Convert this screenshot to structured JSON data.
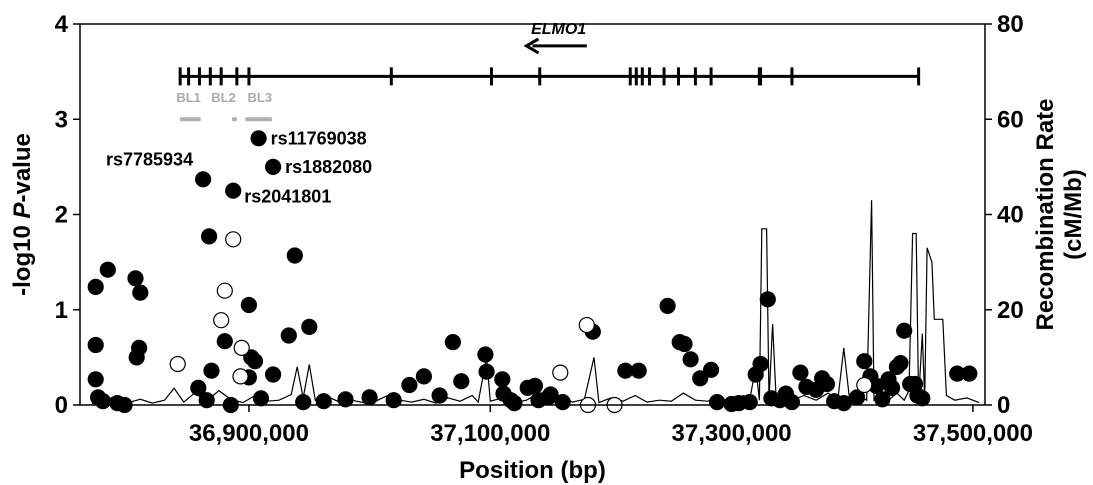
{
  "chart_data": {
    "type": "scatter",
    "xlabel": "Position (bp)",
    "ylabel_prefix": "-log10 ",
    "ylabel_italic": "P",
    "ylabel_suffix": "-value",
    "y2label_line1": "Recombination Rate",
    "y2label_line2": "(cM/Mb)",
    "xlim": [
      36760000,
      37510000
    ],
    "ylim": [
      0,
      4
    ],
    "y2lim": [
      0,
      80
    ],
    "x_ticks": [
      {
        "value": 36900000,
        "label": "36,900,000"
      },
      {
        "value": 37100000,
        "label": "37,100,000"
      },
      {
        "value": 37300000,
        "label": "37,300,000"
      },
      {
        "value": 37500000,
        "label": "37,500,000"
      }
    ],
    "y_ticks": [
      {
        "value": 0,
        "label": "0"
      },
      {
        "value": 1,
        "label": "1"
      },
      {
        "value": 2,
        "label": "2"
      },
      {
        "value": 3,
        "label": "3"
      },
      {
        "value": 4,
        "label": "4"
      }
    ],
    "y2_ticks": [
      {
        "value": 0,
        "label": "0"
      },
      {
        "value": 20,
        "label": "20"
      },
      {
        "value": 40,
        "label": "40"
      },
      {
        "value": 60,
        "label": "60"
      },
      {
        "value": 80,
        "label": "80"
      }
    ],
    "gene": {
      "name": "ELMO1",
      "start": 36843000,
      "end": 37455000,
      "track_y": 3.45,
      "direction": "left",
      "arrow_start": 37130000,
      "arrow_end": 37180000,
      "exons": [
        36843000,
        36850000,
        36859000,
        36868000,
        36877000,
        36890000,
        36900000,
        37018000,
        37101000,
        37141000,
        37216000,
        37221000,
        37226000,
        37232000,
        37244000,
        37256000,
        37270000,
        37283000,
        37323000,
        37324000,
        37350000,
        37455000
      ]
    },
    "ld_blocks": [
      {
        "name": "BL1",
        "start": 36843000,
        "end": 36860000
      },
      {
        "name": "BL2",
        "start": 36886000,
        "end": 36890000
      },
      {
        "name": "BL3",
        "start": 36897000,
        "end": 36919000
      }
    ],
    "labeled_snps": [
      {
        "name": "rs11769038",
        "x": 36908000,
        "y": 2.8
      },
      {
        "name": "rs7785934",
        "x": 36862000,
        "y": 2.37
      },
      {
        "name": "rs1882080",
        "x": 36920000,
        "y": 2.5
      },
      {
        "name": "rs2041801",
        "x": 36887000,
        "y": 2.25
      }
    ],
    "series": [
      {
        "filled": true,
        "points": [
          [
            36773000,
            1.24
          ],
          [
            36783000,
            1.42
          ],
          [
            36797000,
            0.0
          ],
          [
            36806000,
            1.33
          ],
          [
            36810000,
            1.18
          ],
          [
            36809000,
            0.6
          ],
          [
            36807000,
            0.5
          ],
          [
            36773000,
            0.63
          ],
          [
            36773000,
            0.27
          ],
          [
            36775000,
            0.08
          ],
          [
            36779000,
            0.04
          ],
          [
            36791000,
            0.02
          ],
          [
            36858000,
            0.18
          ],
          [
            36867000,
            1.77
          ],
          [
            36869000,
            0.36
          ],
          [
            36865000,
            0.05
          ],
          [
            36880000,
            0.67
          ],
          [
            36885000,
            0.0
          ],
          [
            36900000,
            1.05
          ],
          [
            36902000,
            0.5
          ],
          [
            36905000,
            0.46
          ],
          [
            36900000,
            0.29
          ],
          [
            36910000,
            0.07
          ],
          [
            36920000,
            0.32
          ],
          [
            36933000,
            0.73
          ],
          [
            36938000,
            1.57
          ],
          [
            36945000,
            0.03
          ],
          [
            36950000,
            0.82
          ],
          [
            36962000,
            0.04
          ],
          [
            36980000,
            0.06
          ],
          [
            37000000,
            0.08
          ],
          [
            37020000,
            0.05
          ],
          [
            37033000,
            0.21
          ],
          [
            37045000,
            0.3
          ],
          [
            37058000,
            0.1
          ],
          [
            37069000,
            0.66
          ],
          [
            37076000,
            0.25
          ],
          [
            37096000,
            0.53
          ],
          [
            37097000,
            0.35
          ],
          [
            37110000,
            0.27
          ],
          [
            37111000,
            0.12
          ],
          [
            37117000,
            0.05
          ],
          [
            37120000,
            0.02
          ],
          [
            37131000,
            0.18
          ],
          [
            37137000,
            0.2
          ],
          [
            37140000,
            0.05
          ],
          [
            37148000,
            0.08
          ],
          [
            37150000,
            0.11
          ],
          [
            37160000,
            0.03
          ],
          [
            37185000,
            0.77
          ],
          [
            37212000,
            0.36
          ],
          [
            37223000,
            0.36
          ],
          [
            37247000,
            1.04
          ],
          [
            37257000,
            0.66
          ],
          [
            37261000,
            0.64
          ],
          [
            37266000,
            0.48
          ],
          [
            37274000,
            0.28
          ],
          [
            37283000,
            0.37
          ],
          [
            37288000,
            0.03
          ],
          [
            37300000,
            0.01
          ],
          [
            37306000,
            0.02
          ],
          [
            37315000,
            0.03
          ],
          [
            37320000,
            0.32
          ],
          [
            37324000,
            0.43
          ],
          [
            37330000,
            1.11
          ],
          [
            37333000,
            0.07
          ],
          [
            37340000,
            0.05
          ],
          [
            37345000,
            0.12
          ],
          [
            37350000,
            0.03
          ],
          [
            37357000,
            0.34
          ],
          [
            37362000,
            0.19
          ],
          [
            37370000,
            0.16
          ],
          [
            37375000,
            0.28
          ],
          [
            37379000,
            0.22
          ],
          [
            37385000,
            0.04
          ],
          [
            37393000,
            0.02
          ],
          [
            37404000,
            0.08
          ],
          [
            37410000,
            0.46
          ],
          [
            37415000,
            0.3
          ],
          [
            37420000,
            0.2
          ],
          [
            37425000,
            0.06
          ],
          [
            37430000,
            0.27
          ],
          [
            37433000,
            0.18
          ],
          [
            37437000,
            0.4
          ],
          [
            37440000,
            0.44
          ],
          [
            37443000,
            0.78
          ],
          [
            37448000,
            0.22
          ],
          [
            37452000,
            0.22
          ],
          [
            37454000,
            0.1
          ],
          [
            37458000,
            0.07
          ],
          [
            37487000,
            0.33
          ],
          [
            37497000,
            0.33
          ]
        ]
      },
      {
        "filled": false,
        "points": [
          [
            36841000,
            0.43
          ],
          [
            36887000,
            1.74
          ],
          [
            36880000,
            1.2
          ],
          [
            36877000,
            0.89
          ],
          [
            36894000,
            0.6
          ],
          [
            36893000,
            0.3
          ],
          [
            37158000,
            0.34
          ],
          [
            37180000,
            0.84
          ],
          [
            37181000,
            0.0
          ],
          [
            37203000,
            0.0
          ],
          [
            37410000,
            0.21
          ]
        ]
      }
    ],
    "recombination": [
      [
        36770000,
        0.3
      ],
      [
        36780000,
        0.8
      ],
      [
        36790000,
        2.0
      ],
      [
        36800000,
        0.5
      ],
      [
        36810000,
        1.2
      ],
      [
        36820000,
        0.4
      ],
      [
        36830000,
        1.0
      ],
      [
        36838000,
        3.5
      ],
      [
        36846000,
        0.6
      ],
      [
        36855000,
        2.5
      ],
      [
        36865000,
        0.8
      ],
      [
        36875000,
        3.0
      ],
      [
        36885000,
        1.2
      ],
      [
        36895000,
        0.5
      ],
      [
        36905000,
        2.0
      ],
      [
        36915000,
        0.8
      ],
      [
        36925000,
        1.0
      ],
      [
        36935000,
        2.2
      ],
      [
        36940000,
        8.0
      ],
      [
        36945000,
        1.5
      ],
      [
        36950000,
        8.5
      ],
      [
        36955000,
        1.0
      ],
      [
        36965000,
        1.8
      ],
      [
        36975000,
        0.6
      ],
      [
        36985000,
        1.0
      ],
      [
        36995000,
        0.5
      ],
      [
        37005000,
        0.8
      ],
      [
        37015000,
        2.0
      ],
      [
        37025000,
        1.0
      ],
      [
        37035000,
        0.6
      ],
      [
        37045000,
        1.2
      ],
      [
        37055000,
        0.4
      ],
      [
        37065000,
        1.5
      ],
      [
        37075000,
        0.8
      ],
      [
        37085000,
        2.0
      ],
      [
        37090000,
        0.6
      ],
      [
        37097000,
        10.0
      ],
      [
        37100000,
        0.8
      ],
      [
        37110000,
        1.5
      ],
      [
        37120000,
        0.5
      ],
      [
        37130000,
        1.0
      ],
      [
        37140000,
        2.5
      ],
      [
        37150000,
        0.8
      ],
      [
        37160000,
        1.8
      ],
      [
        37168000,
        0.6
      ],
      [
        37178000,
        1.2
      ],
      [
        37186000,
        10.0
      ],
      [
        37190000,
        0.5
      ],
      [
        37200000,
        1.5
      ],
      [
        37210000,
        0.8
      ],
      [
        37220000,
        2.0
      ],
      [
        37230000,
        0.6
      ],
      [
        37240000,
        1.0
      ],
      [
        37250000,
        0.8
      ],
      [
        37260000,
        2.5
      ],
      [
        37270000,
        1.0
      ],
      [
        37280000,
        0.8
      ],
      [
        37290000,
        1.5
      ],
      [
        37300000,
        0.6
      ],
      [
        37310000,
        2.0
      ],
      [
        37315000,
        1.0
      ],
      [
        37320000,
        8.0
      ],
      [
        37323000,
        1.0
      ],
      [
        37325000,
        37.0
      ],
      [
        37329000,
        37.0
      ],
      [
        37331000,
        1.0
      ],
      [
        37334000,
        17.0
      ],
      [
        37337000,
        1.0
      ],
      [
        37345000,
        3.0
      ],
      [
        37350000,
        1.0
      ],
      [
        37360000,
        2.0
      ],
      [
        37370000,
        1.0
      ],
      [
        37380000,
        2.5
      ],
      [
        37388000,
        1.0
      ],
      [
        37393000,
        12.0
      ],
      [
        37398000,
        0.5
      ],
      [
        37405000,
        2.0
      ],
      [
        37412000,
        1.0
      ],
      [
        37416000,
        43.0
      ],
      [
        37418000,
        1.0
      ],
      [
        37424000,
        2.0
      ],
      [
        37430000,
        1.0
      ],
      [
        37437000,
        2.5
      ],
      [
        37443000,
        1.0
      ],
      [
        37447000,
        3.0
      ],
      [
        37450000,
        36.0
      ],
      [
        37453000,
        36.0
      ],
      [
        37455000,
        1.0
      ],
      [
        37458000,
        15.0
      ],
      [
        37460000,
        1.0
      ],
      [
        37462000,
        33.0
      ],
      [
        37466000,
        30.0
      ],
      [
        37468000,
        18.0
      ],
      [
        37475000,
        18.0
      ],
      [
        37478000,
        2.0
      ],
      [
        37485000,
        1.0
      ],
      [
        37495000,
        1.5
      ],
      [
        37505000,
        0.5
      ]
    ]
  }
}
